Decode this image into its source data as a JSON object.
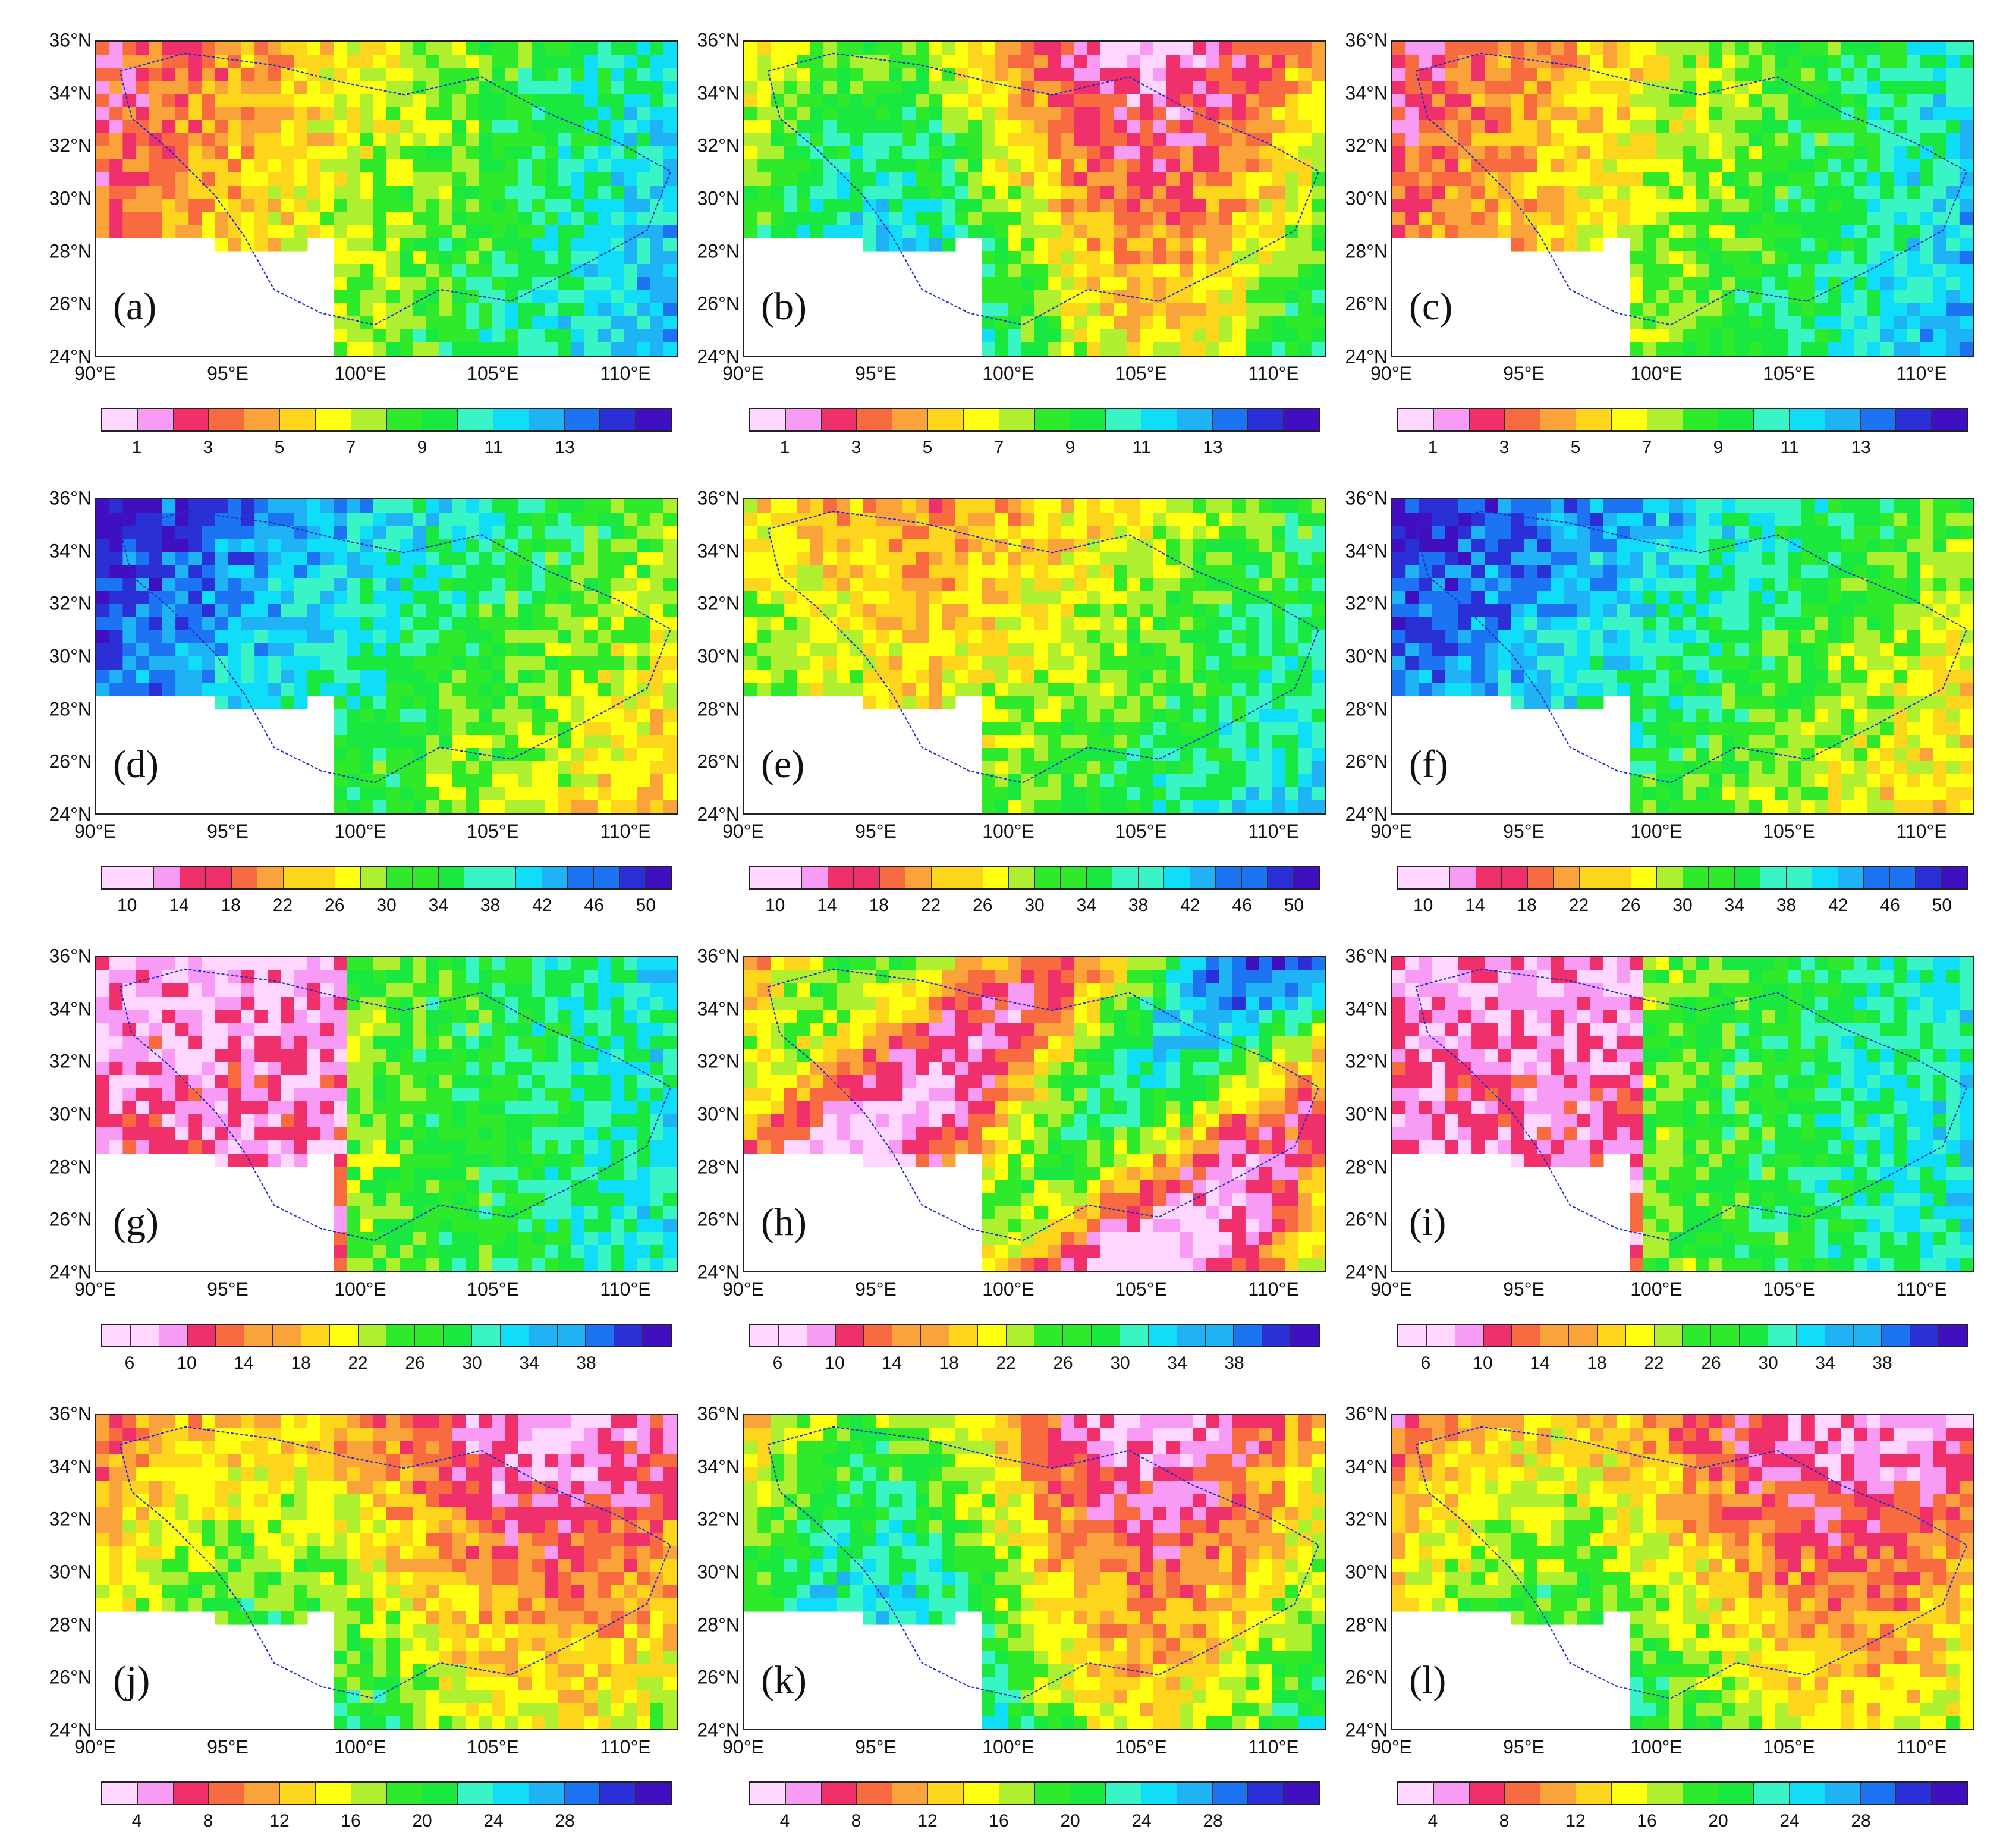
{
  "panel_labels": [
    "(a)",
    "(b)",
    "(c)",
    "(d)",
    "(e)",
    "(f)",
    "(g)",
    "(h)",
    "(i)",
    "(j)",
    "(k)",
    "(l)"
  ],
  "lat_ticks": [
    "36°N",
    "34°N",
    "32°N",
    "30°N",
    "28°N",
    "26°N",
    "24°N"
  ],
  "lon_ticks": [
    "90°E",
    "95°E",
    "100°E",
    "105°E",
    "110°E"
  ],
  "palette": [
    "#FFD6FF",
    "#F79BF5",
    "#F0306A",
    "#F86A40",
    "#F9A33A",
    "#FDD51C",
    "#FFFF10",
    "#AEF030",
    "#2FEA2B",
    "#18E83F",
    "#39F5C5",
    "#10DDF8",
    "#1FB3F5",
    "#1C74F2",
    "#2B2FD6",
    "#4010C0"
  ],
  "rows": [
    {
      "row": "row1",
      "colorbar_labels": [
        "1",
        "3",
        "5",
        "7",
        "9",
        "11",
        "13"
      ]
    },
    {
      "row": "row2",
      "colorbar_labels": [
        "10",
        "14",
        "18",
        "22",
        "26",
        "30",
        "34",
        "38",
        "42",
        "46",
        "50"
      ]
    },
    {
      "row": "row3",
      "colorbar_labels": [
        "6",
        "10",
        "14",
        "18",
        "22",
        "26",
        "30",
        "34",
        "38"
      ]
    },
    {
      "row": "row4",
      "colorbar_labels": [
        "4",
        "8",
        "12",
        "16",
        "20",
        "24",
        "28"
      ]
    }
  ]
}
